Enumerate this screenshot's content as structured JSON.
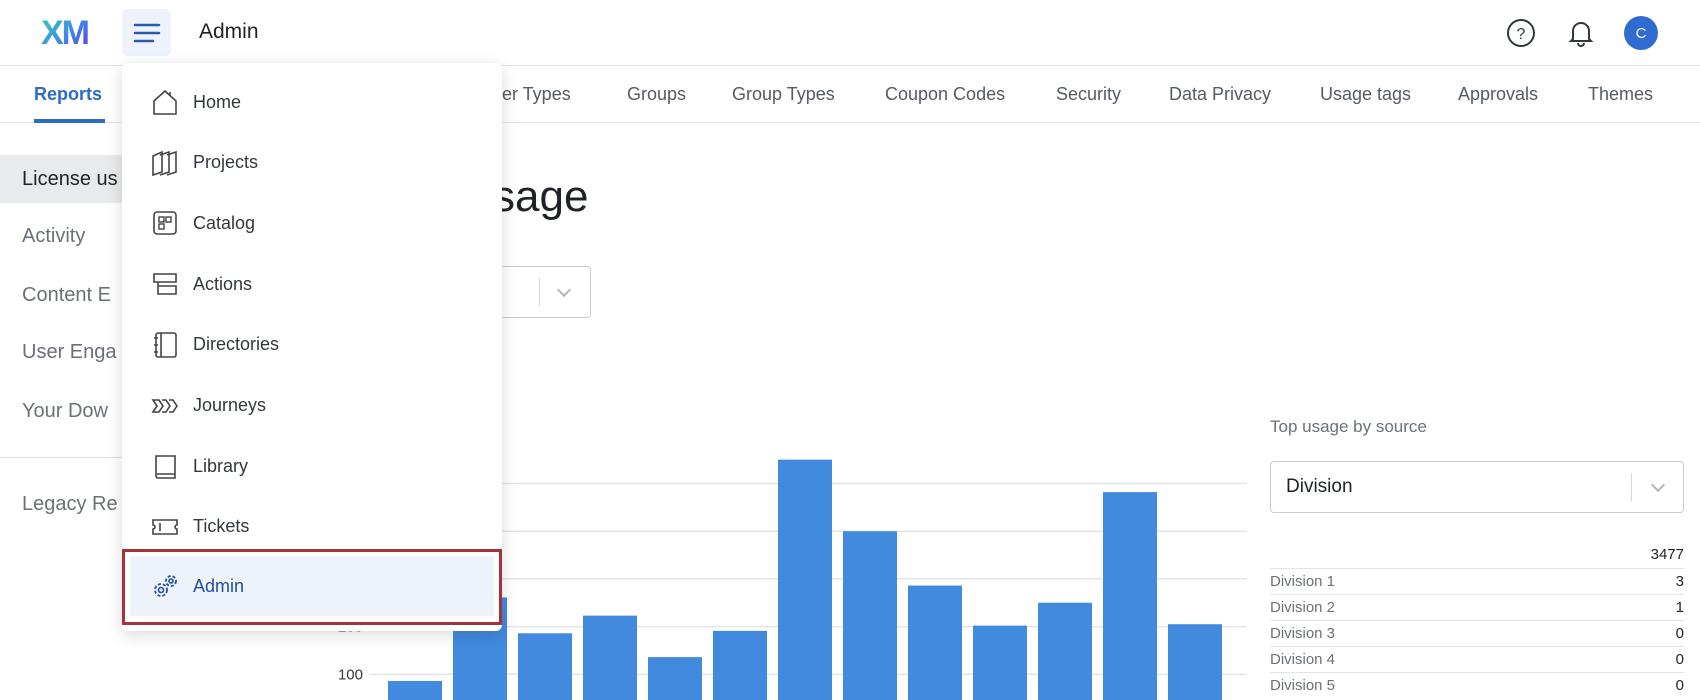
{
  "header": {
    "logo": "XM",
    "title": "Admin",
    "avatar_initial": "C",
    "icons": [
      "menu-icon",
      "help-icon",
      "bell-icon"
    ]
  },
  "tabs": [
    "Reports",
    "ser Types",
    "Groups",
    "Group Types",
    "Coupon Codes",
    "Security",
    "Data Privacy",
    "Usage tags",
    "Approvals",
    "Themes"
  ],
  "sidebar": {
    "items": [
      "License us",
      "Activity",
      "Content E",
      "User Enga",
      "Your Dow"
    ],
    "legacy": "Legacy Re"
  },
  "main": {
    "title": "sage"
  },
  "nav_menu": {
    "items": [
      {
        "label": "Home",
        "icon": "home-icon"
      },
      {
        "label": "Projects",
        "icon": "projects-icon"
      },
      {
        "label": "Catalog",
        "icon": "catalog-icon"
      },
      {
        "label": "Actions",
        "icon": "actions-icon"
      },
      {
        "label": "Directories",
        "icon": "directories-icon"
      },
      {
        "label": "Journeys",
        "icon": "journeys-icon"
      },
      {
        "label": "Library",
        "icon": "library-icon"
      },
      {
        "label": "Tickets",
        "icon": "tickets-icon"
      },
      {
        "label": "Admin",
        "icon": "gears-icon",
        "selected": true
      }
    ],
    "highlight_color": "#a8323a"
  },
  "right_panel": {
    "label": "Top usage by source",
    "dropdown_value": "Division",
    "total": "3477",
    "rows": [
      {
        "name": "Division 1",
        "value": "3"
      },
      {
        "name": "Division 2",
        "value": "1"
      },
      {
        "name": "Division 3",
        "value": "0"
      },
      {
        "name": "Division 4",
        "value": "0"
      },
      {
        "name": "Division 5",
        "value": "0"
      }
    ]
  },
  "chart_data": {
    "type": "bar",
    "color": "#418ade",
    "yticks": [
      "100",
      "200"
    ],
    "gridlines": [
      100,
      200,
      300,
      400,
      500
    ],
    "values": [
      86,
      261,
      186,
      223,
      136,
      191,
      550,
      400,
      286,
      202,
      250,
      482,
      205
    ]
  }
}
